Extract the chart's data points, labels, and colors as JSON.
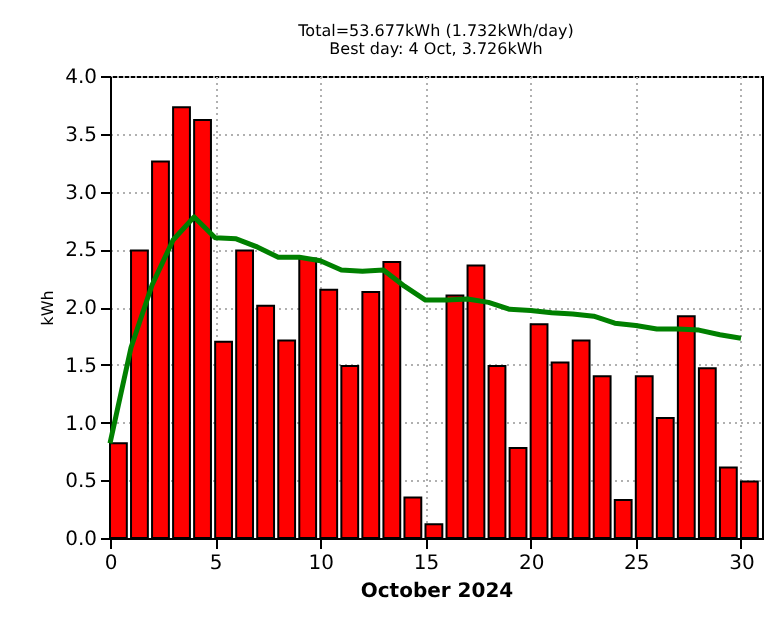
{
  "chart_data": {
    "type": "bar",
    "title": "Total=53.677kWh (1.732kWh/day)",
    "subtitle": "Best day: 4 Oct, 3.726kWh",
    "xlabel": "October 2024",
    "ylabel": "kWh",
    "x": [
      0.4,
      1.4,
      2.4,
      3.4,
      4.4,
      5.4,
      6.4,
      7.4,
      8.4,
      9.4,
      10.4,
      11.4,
      12.4,
      13.4,
      14.4,
      15.4,
      16.4,
      17.4,
      18.4,
      19.4,
      20.4,
      21.4,
      22.4,
      23.4,
      24.4,
      25.4,
      26.4,
      27.4,
      28.4,
      29.4,
      30.4
    ],
    "series": [
      {
        "color": "#ff0000",
        "values": [
          0.82,
          2.49,
          3.26,
          3.73,
          3.62,
          1.7,
          2.49,
          2.01,
          1.71,
          2.42,
          2.15,
          1.49,
          2.13,
          2.39,
          0.35,
          0.12,
          2.1,
          2.36,
          1.49,
          0.78,
          1.85,
          1.52,
          1.71,
          1.4,
          0.33,
          1.4,
          1.04,
          1.92,
          1.47,
          0.61,
          0.49
        ]
      },
      {
        "type": "line",
        "color": "#008000",
        "x": [
          0,
          1,
          2,
          3,
          4,
          5,
          6,
          7,
          8,
          9,
          10,
          11,
          12,
          13,
          14,
          15,
          16,
          17,
          18,
          19,
          20,
          21,
          22,
          23,
          24,
          25,
          26,
          27,
          28,
          29,
          30
        ],
        "values": [
          0.82,
          1.65,
          2.19,
          2.58,
          2.78,
          2.6,
          2.59,
          2.52,
          2.43,
          2.43,
          2.4,
          2.32,
          2.31,
          2.32,
          2.18,
          2.06,
          2.06,
          2.07,
          2.04,
          1.98,
          1.97,
          1.95,
          1.94,
          1.92,
          1.86,
          1.84,
          1.81,
          1.81,
          1.8,
          1.76,
          1.73
        ]
      }
    ],
    "xlim": [
      0,
      31
    ],
    "xticks": [
      0,
      5,
      10,
      15,
      20,
      25,
      30
    ],
    "ylim": [
      0,
      4
    ],
    "yticks": [
      {
        "value": 0,
        "label": "0.0"
      },
      {
        "value": 0.5,
        "label": "0.5"
      },
      {
        "value": 1,
        "label": "1.0"
      },
      {
        "value": 1.5,
        "label": "1.5"
      },
      {
        "value": 2,
        "label": "2.0"
      },
      {
        "value": 2.5,
        "label": "2.5"
      },
      {
        "value": 3,
        "label": "3.0"
      },
      {
        "value": 3.5,
        "label": "3.5"
      },
      {
        "value": 4,
        "label": "4.0"
      }
    ],
    "grid": true
  }
}
